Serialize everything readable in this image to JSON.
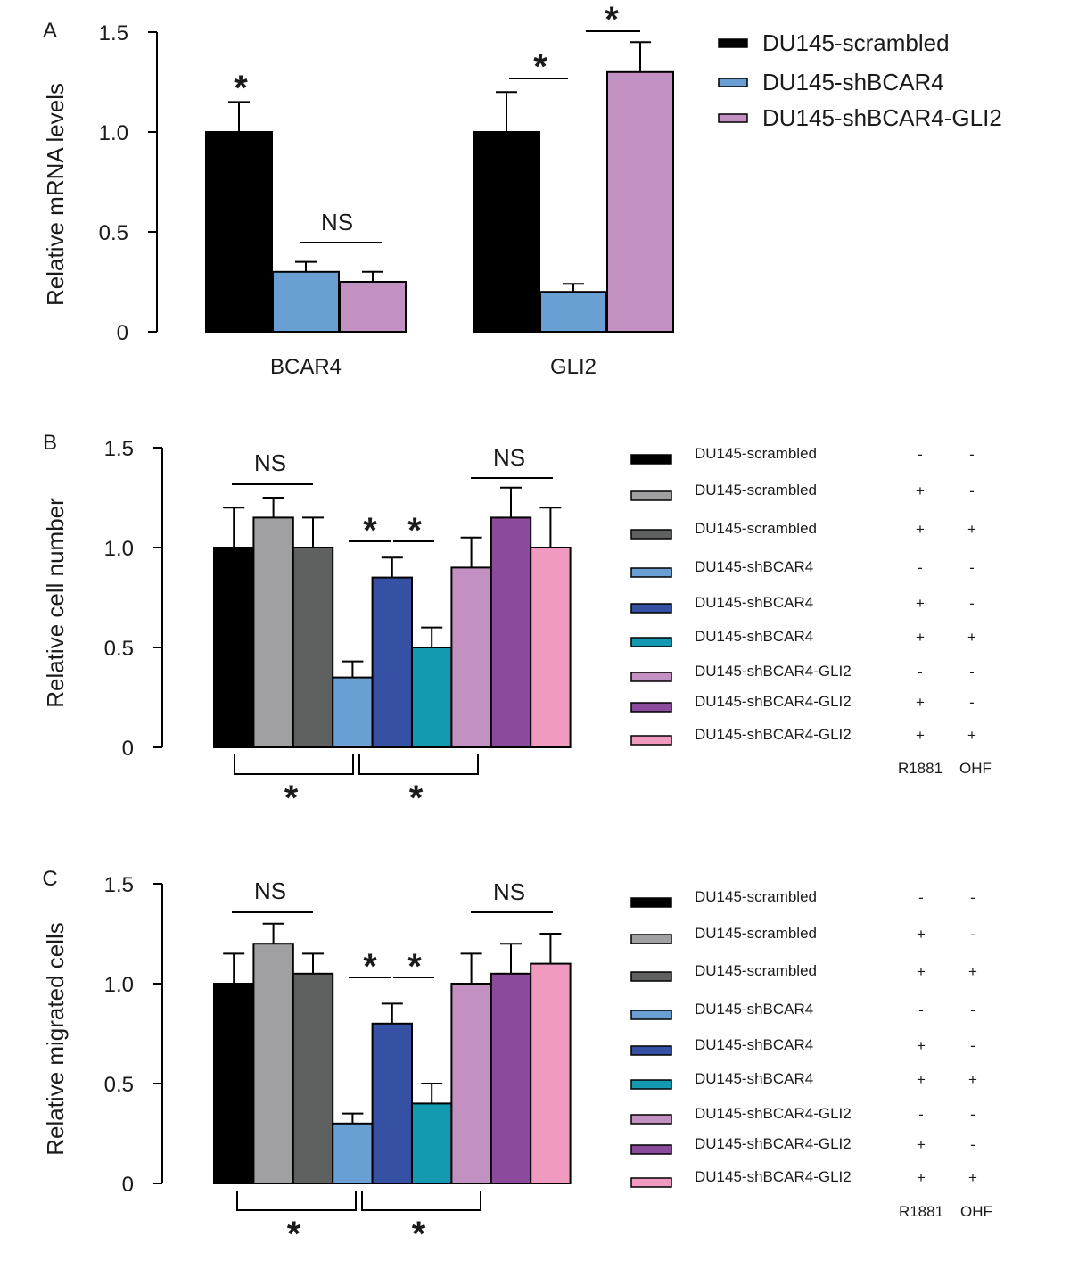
{
  "chart_data": [
    {
      "panel": "A",
      "type": "bar",
      "ylabel": "Relative mRNA levels",
      "ylim": [
        0,
        1.5
      ],
      "yticks": [
        "0",
        "0.5",
        "1.0",
        "1.5"
      ],
      "categories": [
        "BCAR4",
        "GLI2"
      ],
      "legend_position": "top-right",
      "series": [
        {
          "name": "DU145-scrambled",
          "color": "#000000",
          "values": [
            1.0,
            1.0
          ],
          "errors": [
            0.15,
            0.2
          ]
        },
        {
          "name": "DU145-shBCAR4",
          "color": "#6a9fd4",
          "values": [
            0.3,
            0.2
          ],
          "errors": [
            0.05,
            0.04
          ]
        },
        {
          "name": "DU145-shBCAR4-GLI2",
          "color": "#c390c2",
          "values": [
            0.25,
            1.3
          ],
          "errors": [
            0.05,
            0.15
          ]
        }
      ],
      "annotations": [
        {
          "text": "*",
          "category": "BCAR4",
          "bars": [
            0
          ]
        },
        {
          "text": "NS",
          "category": "BCAR4",
          "bars": [
            1,
            2
          ]
        },
        {
          "text": "*",
          "category": "GLI2",
          "bars": [
            0,
            1
          ]
        },
        {
          "text": "*",
          "category": "GLI2",
          "bars": [
            1,
            2
          ]
        }
      ]
    },
    {
      "panel": "B",
      "type": "bar",
      "ylabel": "Relative cell number",
      "ylim": [
        0,
        1.5
      ],
      "yticks": [
        "0",
        "0.5",
        "1.0",
        "1.5"
      ],
      "legend_position": "right",
      "legend_columns": [
        "R1881",
        "OHF"
      ],
      "series": [
        {
          "name": "DU145-scrambled",
          "color": "#000000",
          "R1881": "-",
          "OHF": "-",
          "value": 1.0,
          "error": 0.2
        },
        {
          "name": "DU145-scrambled",
          "color": "#a0a0a2",
          "R1881": "+",
          "OHF": "-",
          "value": 1.15,
          "error": 0.1
        },
        {
          "name": "DU145-scrambled",
          "color": "#5f6160",
          "R1881": "+",
          "OHF": "+",
          "value": 1.0,
          "error": 0.15
        },
        {
          "name": "DU145-shBCAR4",
          "color": "#6a9fd4",
          "R1881": "-",
          "OHF": "-",
          "value": 0.35,
          "error": 0.08
        },
        {
          "name": "DU145-shBCAR4",
          "color": "#3651a3",
          "R1881": "+",
          "OHF": "-",
          "value": 0.85,
          "error": 0.1
        },
        {
          "name": "DU145-shBCAR4",
          "color": "#1399b0",
          "R1881": "+",
          "OHF": "+",
          "value": 0.5,
          "error": 0.1
        },
        {
          "name": "DU145-shBCAR4-GLI2",
          "color": "#c390c2",
          "R1881": "-",
          "OHF": "-",
          "value": 0.9,
          "error": 0.15
        },
        {
          "name": "DU145-shBCAR4-GLI2",
          "color": "#8b4a9c",
          "R1881": "+",
          "OHF": "-",
          "value": 1.15,
          "error": 0.15
        },
        {
          "name": "DU145-shBCAR4-GLI2",
          "color": "#f09abf",
          "R1881": "+",
          "OHF": "+",
          "value": 1.0,
          "error": 0.2
        }
      ],
      "annotations": [
        {
          "text": "NS",
          "bars": [
            0,
            2
          ],
          "position": "above"
        },
        {
          "text": "*",
          "bars": [
            3,
            4
          ],
          "position": "above"
        },
        {
          "text": "*",
          "bars": [
            4,
            5
          ],
          "position": "above"
        },
        {
          "text": "NS",
          "bars": [
            6,
            8
          ],
          "position": "above"
        },
        {
          "text": "*",
          "bars": [
            0,
            3
          ],
          "position": "below"
        },
        {
          "text": "*",
          "bars": [
            3,
            6
          ],
          "position": "below"
        }
      ]
    },
    {
      "panel": "C",
      "type": "bar",
      "ylabel": "Relative migrated cells",
      "ylim": [
        0,
        1.5
      ],
      "yticks": [
        "0",
        "0.5",
        "1.0",
        "1.5"
      ],
      "legend_position": "right",
      "legend_columns": [
        "R1881",
        "OHF"
      ],
      "series": [
        {
          "name": "DU145-scrambled",
          "color": "#000000",
          "R1881": "-",
          "OHF": "-",
          "value": 1.0,
          "error": 0.15
        },
        {
          "name": "DU145-scrambled",
          "color": "#a0a0a2",
          "R1881": "+",
          "OHF": "-",
          "value": 1.2,
          "error": 0.1
        },
        {
          "name": "DU145-scrambled",
          "color": "#5f6160",
          "R1881": "+",
          "OHF": "+",
          "value": 1.05,
          "error": 0.1
        },
        {
          "name": "DU145-shBCAR4",
          "color": "#6a9fd4",
          "R1881": "-",
          "OHF": "-",
          "value": 0.3,
          "error": 0.05
        },
        {
          "name": "DU145-shBCAR4",
          "color": "#3651a3",
          "R1881": "+",
          "OHF": "-",
          "value": 0.8,
          "error": 0.1
        },
        {
          "name": "DU145-shBCAR4",
          "color": "#1399b0",
          "R1881": "+",
          "OHF": "+",
          "value": 0.4,
          "error": 0.1
        },
        {
          "name": "DU145-shBCAR4-GLI2",
          "color": "#c390c2",
          "R1881": "-",
          "OHF": "-",
          "value": 1.0,
          "error": 0.15
        },
        {
          "name": "DU145-shBCAR4-GLI2",
          "color": "#8b4a9c",
          "R1881": "+",
          "OHF": "-",
          "value": 1.05,
          "error": 0.15
        },
        {
          "name": "DU145-shBCAR4-GLI2",
          "color": "#f09abf",
          "R1881": "+",
          "OHF": "+",
          "value": 1.1,
          "error": 0.15
        }
      ],
      "annotations": [
        {
          "text": "NS",
          "bars": [
            0,
            2
          ],
          "position": "above"
        },
        {
          "text": "*",
          "bars": [
            3,
            4
          ],
          "position": "above"
        },
        {
          "text": "*",
          "bars": [
            4,
            5
          ],
          "position": "above"
        },
        {
          "text": "NS",
          "bars": [
            6,
            8
          ],
          "position": "above"
        },
        {
          "text": "*",
          "bars": [
            0,
            3
          ],
          "position": "below"
        },
        {
          "text": "*",
          "bars": [
            3,
            6
          ],
          "position": "below"
        }
      ]
    }
  ]
}
